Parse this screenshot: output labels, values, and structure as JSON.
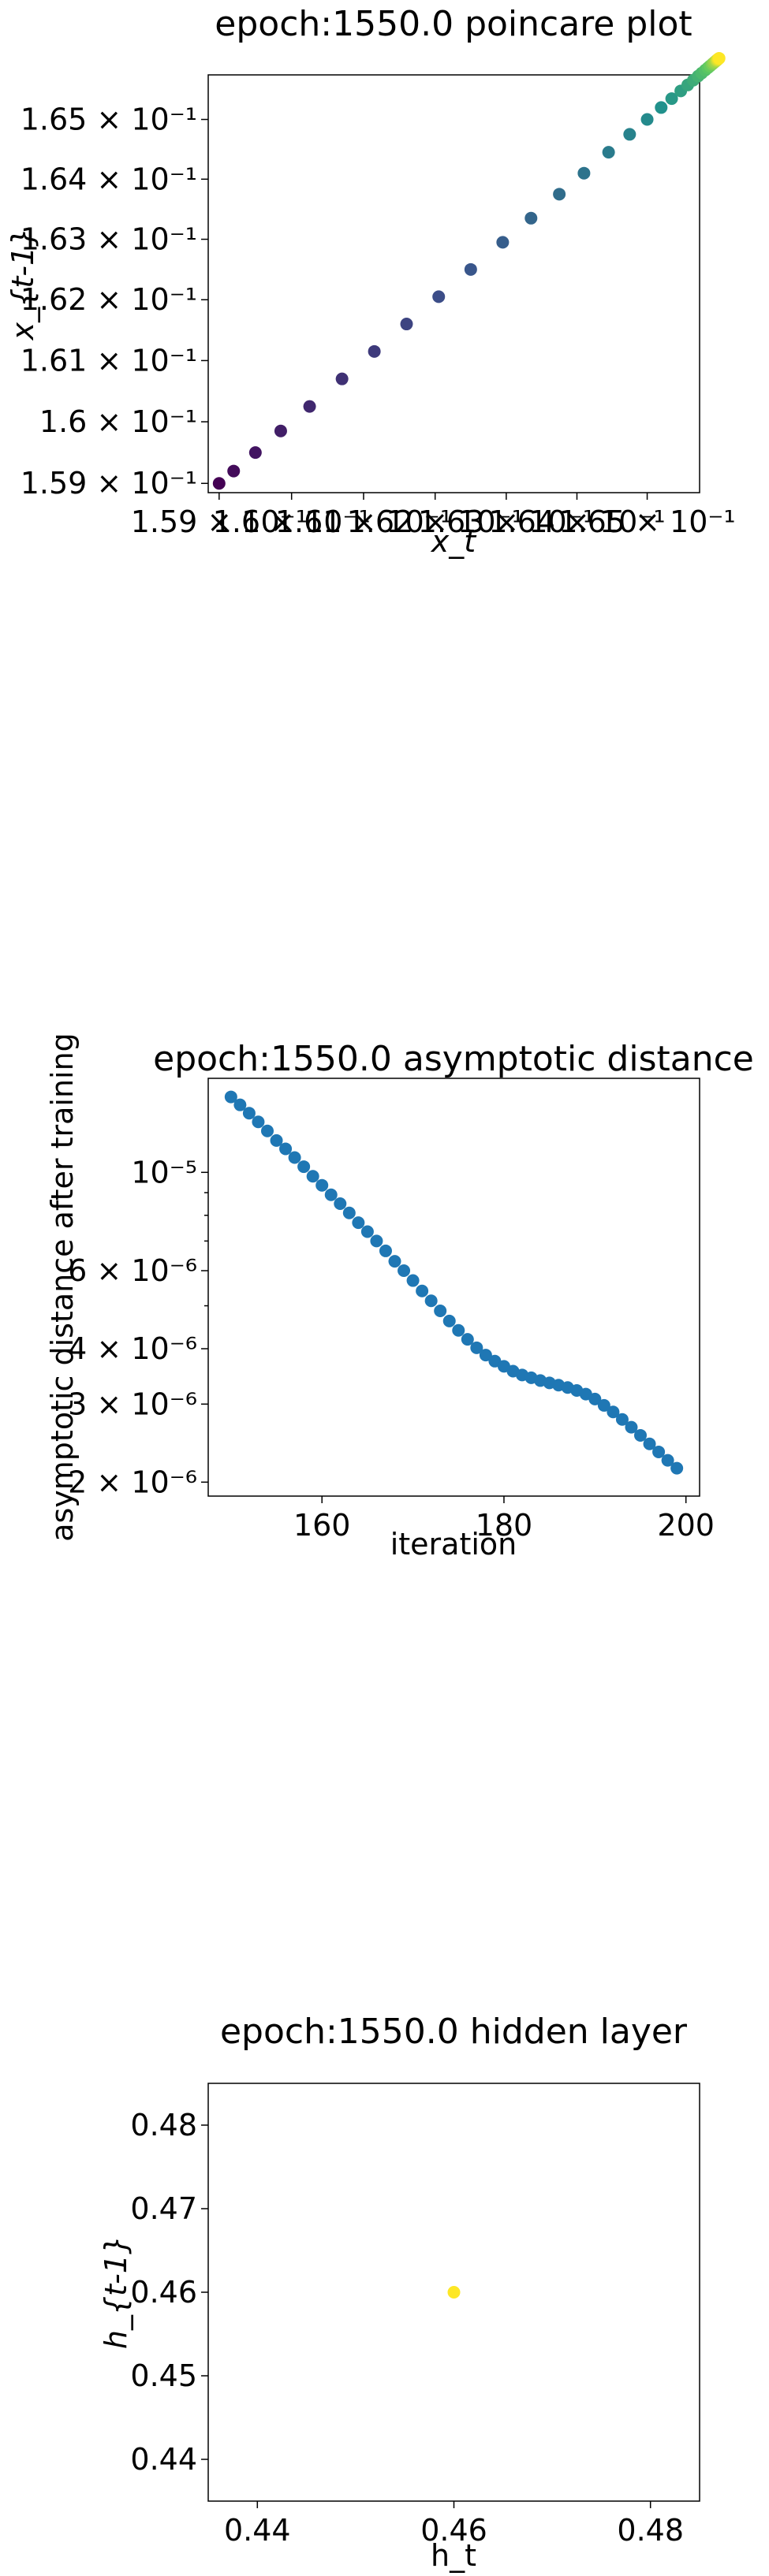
{
  "chart_data": [
    {
      "type": "scatter",
      "title": "epoch:1550.0 poincare plot",
      "xlabel": "x_t",
      "ylabel": "x_{t-1}",
      "xscale": "log",
      "yscale": "log",
      "xlim": [
        0.15885,
        0.16575
      ],
      "ylim": [
        0.15885,
        0.16575
      ],
      "grid": false,
      "color_map": "viridis",
      "xtick_values": [
        0.159,
        0.16,
        0.161,
        0.162,
        0.163,
        0.164,
        0.165
      ],
      "xtick_labels": [
        "1.59 × 10⁻¹",
        "1.6 × 10⁻¹",
        "1.61 × 10⁻¹",
        "1.62 × 10⁻¹",
        "1.63 × 10⁻¹",
        "1.64 × 10⁻¹",
        "1.65 × 10⁻¹"
      ],
      "ytick_values": [
        0.159,
        0.16,
        0.161,
        0.162,
        0.163,
        0.164,
        0.165
      ],
      "ytick_labels": [
        "1.59 × 10⁻¹",
        "1.6 × 10⁻¹",
        "1.61 × 10⁻¹",
        "1.62 × 10⁻¹",
        "1.63 × 10⁻¹",
        "1.64 × 10⁻¹",
        "1.65 × 10⁻¹"
      ],
      "x": [
        0.159,
        0.1592,
        0.1595,
        0.15985,
        0.16025,
        0.1607,
        0.16115,
        0.1616,
        0.16205,
        0.1625,
        0.16295,
        0.16335,
        0.16375,
        0.1641,
        0.16445,
        0.16475,
        0.165,
        0.1652,
        0.16535,
        0.16548,
        0.16558,
        0.16566,
        0.16573,
        0.16578,
        0.16583,
        0.16587,
        0.1659,
        0.16593,
        0.16595,
        0.16597,
        0.16599,
        0.166,
        0.16601,
        0.16602,
        0.16603
      ],
      "y": [
        0.159,
        0.1592,
        0.1595,
        0.15985,
        0.16025,
        0.1607,
        0.16115,
        0.1616,
        0.16205,
        0.1625,
        0.16295,
        0.16335,
        0.16375,
        0.1641,
        0.16445,
        0.16475,
        0.165,
        0.1652,
        0.16535,
        0.16548,
        0.16558,
        0.16566,
        0.16573,
        0.16578,
        0.16583,
        0.16587,
        0.1659,
        0.16593,
        0.16595,
        0.16597,
        0.16599,
        0.166,
        0.16601,
        0.16602,
        0.16603
      ]
    },
    {
      "type": "scatter",
      "title": "epoch:1550.0 asymptotic distance",
      "xlabel": "iteration",
      "ylabel": "asymptotic distance after training",
      "yscale": "log",
      "xlim": [
        147.5,
        201.5
      ],
      "ylim": [
        1.86e-06,
        1.63e-05
      ],
      "grid": false,
      "color": "#1f77b4",
      "xtick_values": [
        160,
        180,
        200
      ],
      "xtick_labels": [
        "160",
        "180",
        "200"
      ],
      "ytick_values": [
        2e-06,
        3e-06,
        4e-06,
        6e-06,
        1e-05
      ],
      "ytick_labels": [
        "2 × 10⁻⁶",
        "3 × 10⁻⁶",
        "4 × 10⁻⁶",
        "6 × 10⁻⁶",
        "10⁻⁵"
      ],
      "x": [
        150,
        151,
        152,
        153,
        154,
        155,
        156,
        157,
        158,
        159,
        160,
        161,
        162,
        163,
        164,
        165,
        166,
        167,
        168,
        169,
        170,
        171,
        172,
        173,
        174,
        175,
        176,
        177,
        178,
        179,
        180,
        181,
        182,
        183,
        184,
        185,
        186,
        187,
        188,
        189,
        190,
        191,
        192,
        193,
        194,
        195,
        196,
        197,
        198,
        199
      ],
      "y": [
        1.48e-05,
        1.42e-05,
        1.36e-05,
        1.3e-05,
        1.24e-05,
        1.18e-05,
        1.13e-05,
        1.08e-05,
        1.03e-05,
        9.8e-06,
        9.35e-06,
        8.9e-06,
        8.5e-06,
        8.1e-06,
        7.7e-06,
        7.35e-06,
        7e-06,
        6.65e-06,
        6.3e-06,
        6e-06,
        5.7e-06,
        5.4e-06,
        5.13e-06,
        4.87e-06,
        4.62e-06,
        4.4e-06,
        4.2e-06,
        4.02e-06,
        3.87e-06,
        3.75e-06,
        3.65e-06,
        3.56e-06,
        3.49e-06,
        3.44e-06,
        3.39e-06,
        3.35e-06,
        3.31e-06,
        3.27e-06,
        3.22e-06,
        3.16e-06,
        3.08e-06,
        2.98e-06,
        2.88e-06,
        2.77e-06,
        2.66e-06,
        2.55e-06,
        2.44e-06,
        2.34e-06,
        2.24e-06,
        2.15e-06
      ]
    },
    {
      "type": "scatter",
      "title": "epoch:1550.0 hidden layer",
      "xlabel": "h_t",
      "ylabel": "h_{t-1}",
      "xlim": [
        0.435,
        0.485
      ],
      "ylim": [
        0.435,
        0.485
      ],
      "grid": false,
      "color": "#fde725",
      "xtick_values": [
        0.44,
        0.46,
        0.48
      ],
      "xtick_labels": [
        "0.44",
        "0.46",
        "0.48"
      ],
      "ytick_values": [
        0.44,
        0.45,
        0.46,
        0.47,
        0.48
      ],
      "ytick_labels": [
        "0.44",
        "0.45",
        "0.46",
        "0.47",
        "0.48"
      ],
      "x": [
        0.46
      ],
      "y": [
        0.46
      ]
    }
  ]
}
